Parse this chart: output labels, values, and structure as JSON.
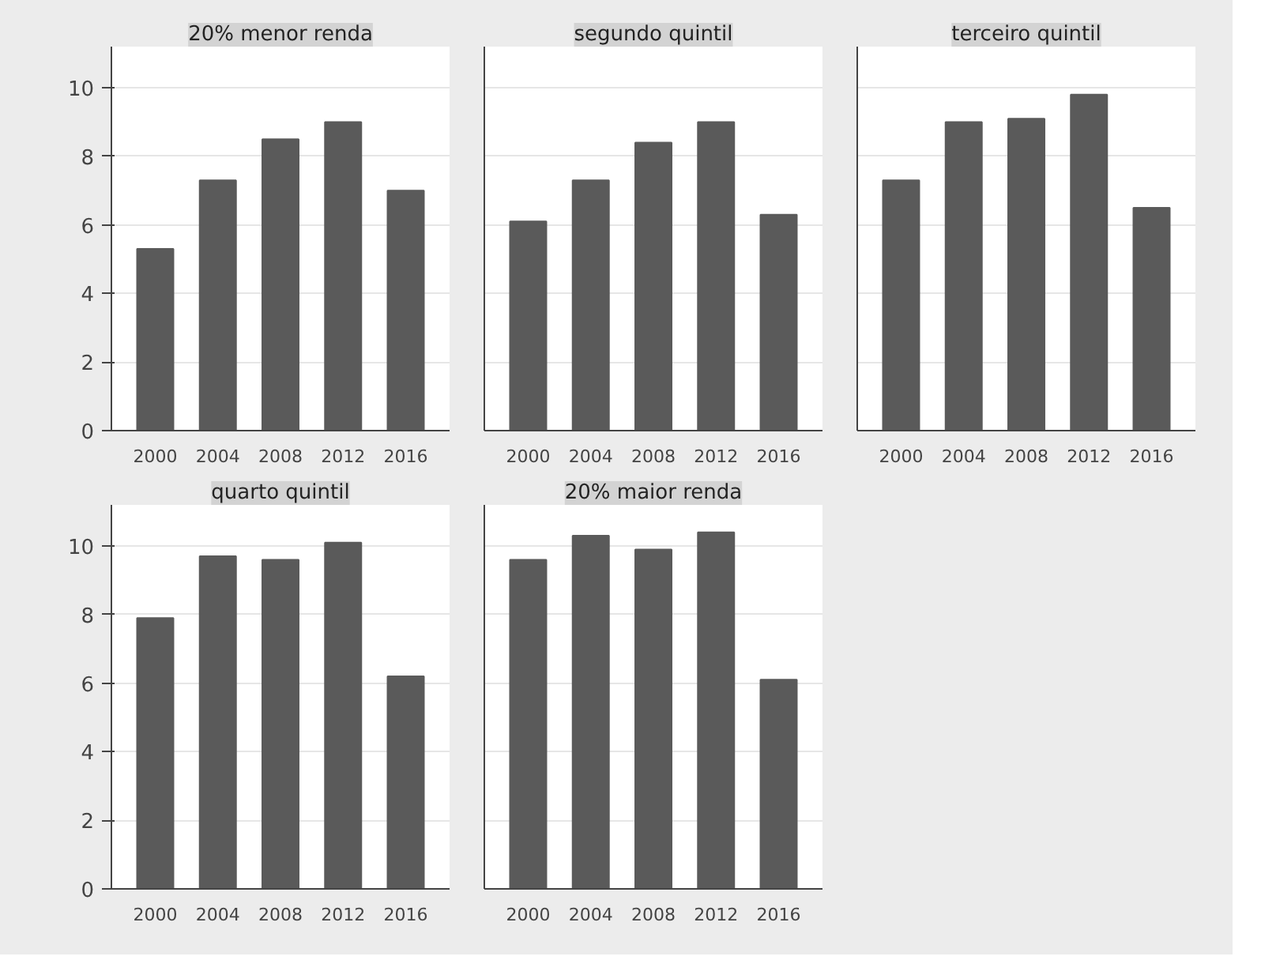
{
  "chart_data": [
    {
      "type": "bar",
      "title": "20% menor renda",
      "categories": [
        "2000",
        "2004",
        "2008",
        "2012",
        "2016"
      ],
      "values": [
        5.3,
        7.3,
        8.5,
        9.0,
        7.0
      ],
      "color": "#5a5a5a",
      "ylim": [
        0,
        11.2
      ],
      "yticks": [
        0,
        2,
        4,
        6,
        8,
        10
      ],
      "grid": "y"
    },
    {
      "type": "bar",
      "title": "segundo quintil",
      "categories": [
        "2000",
        "2004",
        "2008",
        "2012",
        "2016"
      ],
      "values": [
        6.1,
        7.3,
        8.4,
        9.0,
        6.3
      ],
      "color": "#5a5a5a",
      "ylim": [
        0,
        11.2
      ],
      "yticks": [
        0,
        2,
        4,
        6,
        8,
        10
      ],
      "grid": "y",
      "tick_labels": "x"
    },
    {
      "type": "bar",
      "title": "terceiro quintil",
      "categories": [
        "2000",
        "2004",
        "2008",
        "2012",
        "2016"
      ],
      "values": [
        7.3,
        9.0,
        9.1,
        9.8,
        6.5
      ],
      "color": "#5a5a5a",
      "ylim": [
        0,
        11.2
      ],
      "yticks": [
        0,
        2,
        4,
        6,
        8,
        10
      ],
      "grid": "y",
      "tick_labels": "x"
    },
    {
      "type": "bar",
      "title": "quarto quintil",
      "categories": [
        "2000",
        "2004",
        "2008",
        "2012",
        "2016"
      ],
      "values": [
        7.9,
        9.7,
        9.6,
        10.1,
        6.2
      ],
      "color": "#5a5a5a",
      "ylim": [
        0,
        11.2
      ],
      "yticks": [
        0,
        2,
        4,
        6,
        8,
        10
      ],
      "grid": "y"
    },
    {
      "type": "bar",
      "title": "20% maior renda",
      "categories": [
        "2000",
        "2004",
        "2008",
        "2012",
        "2016"
      ],
      "values": [
        9.6,
        10.3,
        9.9,
        10.4,
        6.1
      ],
      "color": "#5a5a5a",
      "ylim": [
        0,
        11.2
      ],
      "yticks": [
        0,
        2,
        4,
        6,
        8,
        10
      ],
      "grid": "y",
      "tick_labels": "x"
    }
  ]
}
